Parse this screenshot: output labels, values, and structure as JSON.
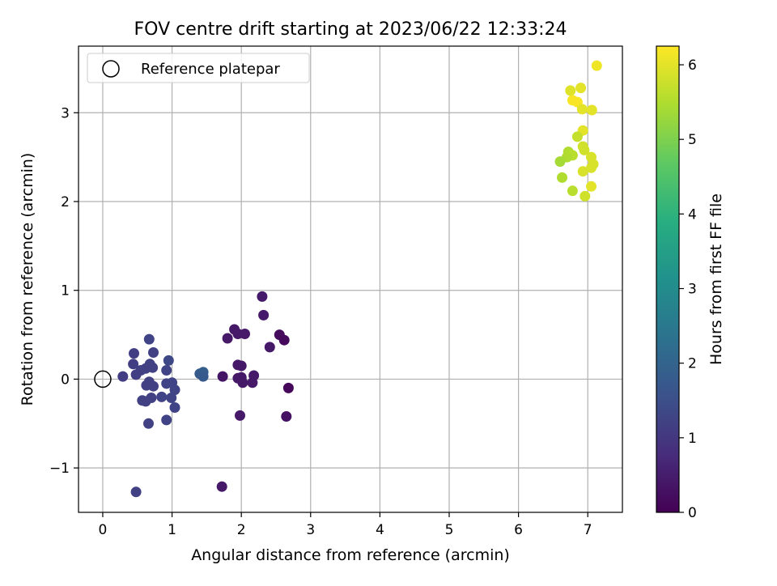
{
  "chart_data": {
    "type": "scatter",
    "title": "FOV centre drift starting at 2023/06/22 12:33:24",
    "xlabel": "Angular distance from reference (arcmin)",
    "ylabel": "Rotation from reference (arcmin)",
    "xlim": [
      -0.35,
      7.5
    ],
    "ylim": [
      -1.5,
      3.75
    ],
    "xticks": [
      0,
      1,
      2,
      3,
      4,
      5,
      6,
      7
    ],
    "yticks": [
      -1,
      0,
      1,
      2,
      3
    ],
    "xtick_labels": [
      "0",
      "1",
      "2",
      "3",
      "4",
      "5",
      "6",
      "7"
    ],
    "ytick_labels": [
      "−1",
      "0",
      "1",
      "2",
      "3"
    ],
    "grid": true,
    "legend": {
      "position": "top-left",
      "entries": [
        "Reference platepar"
      ]
    },
    "reference_point": {
      "x": 0,
      "y": 0
    },
    "colorbar": {
      "label": "Hours from first FF file",
      "colormap": "viridis",
      "range": [
        0,
        6.25
      ],
      "ticks": [
        0,
        1,
        2,
        3,
        4,
        5,
        6
      ],
      "tick_labels": [
        "0",
        "1",
        "2",
        "3",
        "4",
        "5",
        "6"
      ]
    },
    "points": [
      {
        "x": 2.3,
        "y": 0.93,
        "h": 0.45
      },
      {
        "x": 2.32,
        "y": 0.72,
        "h": 0.45
      },
      {
        "x": 1.9,
        "y": 0.56,
        "h": 0.4
      },
      {
        "x": 1.95,
        "y": 0.51,
        "h": 0.4
      },
      {
        "x": 2.05,
        "y": 0.51,
        "h": 0.42
      },
      {
        "x": 1.8,
        "y": 0.46,
        "h": 0.4
      },
      {
        "x": 2.55,
        "y": 0.5,
        "h": 0.2
      },
      {
        "x": 2.62,
        "y": 0.44,
        "h": 0.15
      },
      {
        "x": 2.41,
        "y": 0.36,
        "h": 0.4
      },
      {
        "x": 1.95,
        "y": 0.16,
        "h": 0.4
      },
      {
        "x": 2.0,
        "y": 0.15,
        "h": 0.4
      },
      {
        "x": 1.73,
        "y": 0.03,
        "h": 0.35
      },
      {
        "x": 1.95,
        "y": 0.01,
        "h": 0.4
      },
      {
        "x": 2.0,
        "y": 0.02,
        "h": 0.4
      },
      {
        "x": 2.02,
        "y": -0.04,
        "h": 0.4
      },
      {
        "x": 2.18,
        "y": 0.04,
        "h": 0.42
      },
      {
        "x": 2.16,
        "y": -0.04,
        "h": 0.42
      },
      {
        "x": 2.68,
        "y": -0.1,
        "h": 0.1
      },
      {
        "x": 1.98,
        "y": -0.41,
        "h": 0.42
      },
      {
        "x": 2.65,
        "y": -0.42,
        "h": 0.3
      },
      {
        "x": 1.72,
        "y": -1.21,
        "h": 0.4
      },
      {
        "x": 1.4,
        "y": 0.06,
        "h": 1.75
      },
      {
        "x": 1.45,
        "y": 0.08,
        "h": 1.85
      },
      {
        "x": 1.45,
        "y": 0.03,
        "h": 1.75
      },
      {
        "x": 0.67,
        "y": 0.45,
        "h": 1.25
      },
      {
        "x": 0.45,
        "y": 0.29,
        "h": 1.15
      },
      {
        "x": 0.73,
        "y": 0.3,
        "h": 1.2
      },
      {
        "x": 0.95,
        "y": 0.21,
        "h": 1.35
      },
      {
        "x": 0.44,
        "y": 0.17,
        "h": 1.15
      },
      {
        "x": 0.68,
        "y": 0.17,
        "h": 1.2
      },
      {
        "x": 0.72,
        "y": 0.13,
        "h": 1.2
      },
      {
        "x": 0.62,
        "y": 0.12,
        "h": 1.2
      },
      {
        "x": 0.55,
        "y": 0.1,
        "h": 1.2
      },
      {
        "x": 0.92,
        "y": 0.1,
        "h": 1.25
      },
      {
        "x": 0.48,
        "y": 0.05,
        "h": 1.15
      },
      {
        "x": 0.29,
        "y": 0.03,
        "h": 1.1
      },
      {
        "x": 0.67,
        "y": -0.03,
        "h": 1.2
      },
      {
        "x": 0.63,
        "y": -0.07,
        "h": 1.2
      },
      {
        "x": 0.73,
        "y": -0.08,
        "h": 1.2
      },
      {
        "x": 0.92,
        "y": -0.05,
        "h": 1.25
      },
      {
        "x": 1.0,
        "y": -0.04,
        "h": 1.25
      },
      {
        "x": 1.04,
        "y": -0.12,
        "h": 1.25
      },
      {
        "x": 0.85,
        "y": -0.2,
        "h": 1.25
      },
      {
        "x": 0.7,
        "y": -0.21,
        "h": 1.2
      },
      {
        "x": 0.99,
        "y": -0.21,
        "h": 1.25
      },
      {
        "x": 0.57,
        "y": -0.24,
        "h": 1.2
      },
      {
        "x": 0.62,
        "y": -0.25,
        "h": 1.2
      },
      {
        "x": 1.04,
        "y": -0.32,
        "h": 1.25
      },
      {
        "x": 0.92,
        "y": -0.46,
        "h": 1.25
      },
      {
        "x": 0.66,
        "y": -0.5,
        "h": 1.2
      },
      {
        "x": 0.48,
        "y": -1.27,
        "h": 1.2
      },
      {
        "x": 7.13,
        "y": 3.53,
        "h": 6.1
      },
      {
        "x": 6.75,
        "y": 3.25,
        "h": 5.95
      },
      {
        "x": 6.9,
        "y": 3.28,
        "h": 6.0
      },
      {
        "x": 6.78,
        "y": 3.14,
        "h": 6.2
      },
      {
        "x": 6.85,
        "y": 3.12,
        "h": 6.2
      },
      {
        "x": 6.92,
        "y": 3.04,
        "h": 6.0
      },
      {
        "x": 7.06,
        "y": 3.03,
        "h": 6.0
      },
      {
        "x": 6.93,
        "y": 2.8,
        "h": 6.0
      },
      {
        "x": 6.85,
        "y": 2.73,
        "h": 5.7
      },
      {
        "x": 6.93,
        "y": 2.62,
        "h": 5.8
      },
      {
        "x": 6.95,
        "y": 2.58,
        "h": 5.8
      },
      {
        "x": 6.72,
        "y": 2.56,
        "h": 5.5
      },
      {
        "x": 6.78,
        "y": 2.52,
        "h": 5.6
      },
      {
        "x": 6.7,
        "y": 2.5,
        "h": 5.5
      },
      {
        "x": 7.05,
        "y": 2.5,
        "h": 5.9
      },
      {
        "x": 6.6,
        "y": 2.45,
        "h": 5.4
      },
      {
        "x": 7.08,
        "y": 2.42,
        "h": 5.9
      },
      {
        "x": 7.05,
        "y": 2.38,
        "h": 5.9
      },
      {
        "x": 6.93,
        "y": 2.34,
        "h": 5.9
      },
      {
        "x": 6.63,
        "y": 2.27,
        "h": 5.5
      },
      {
        "x": 7.05,
        "y": 2.17,
        "h": 6.0
      },
      {
        "x": 6.78,
        "y": 2.12,
        "h": 5.6
      },
      {
        "x": 6.96,
        "y": 2.06,
        "h": 5.8
      }
    ]
  }
}
